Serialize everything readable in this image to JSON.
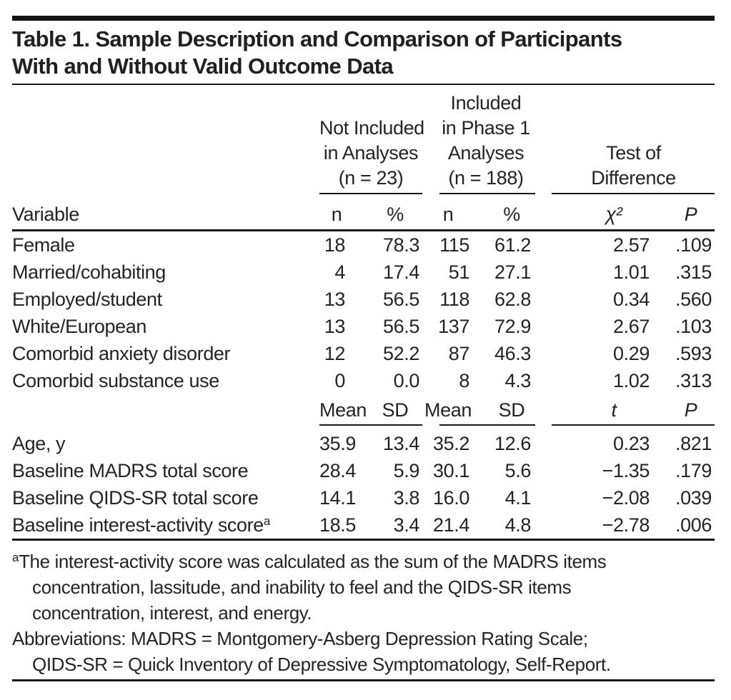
{
  "colors": {
    "background": "#ffffff",
    "text": "#262324",
    "rule": "#1b1818"
  },
  "title": {
    "line1": "Table 1. Sample Description and Comparison of Participants",
    "line2": "With and Without Valid Outcome Data"
  },
  "table": {
    "variable_header": "Variable",
    "groups": [
      {
        "label_lines": [
          "Not Included",
          "in Analyses",
          "(n = 23)"
        ]
      },
      {
        "label_lines": [
          "Included",
          "in Phase 1",
          "Analyses",
          "(n = 188)"
        ]
      },
      {
        "label_lines": [
          "Test of",
          "Difference"
        ]
      }
    ],
    "section1": {
      "col_headers": [
        {
          "text": "n",
          "italic": false
        },
        {
          "text": "%",
          "italic": false
        },
        {
          "text": "n",
          "italic": false
        },
        {
          "text": "%",
          "italic": false
        },
        {
          "text": "χ²",
          "italic": true
        },
        {
          "text": "P",
          "italic": true
        }
      ],
      "rows": [
        {
          "label": "Female",
          "values": [
            "18",
            "78.3",
            "115",
            "61.2",
            "2.57",
            ".109"
          ]
        },
        {
          "label": "Married/cohabiting",
          "values": [
            "4",
            "17.4",
            "51",
            "27.1",
            "1.01",
            ".315"
          ]
        },
        {
          "label": "Employed/student",
          "values": [
            "13",
            "56.5",
            "118",
            "62.8",
            "0.34",
            ".560"
          ]
        },
        {
          "label": "White/European",
          "values": [
            "13",
            "56.5",
            "137",
            "72.9",
            "2.67",
            ".103"
          ]
        },
        {
          "label": "Comorbid anxiety disorder",
          "values": [
            "12",
            "52.2",
            "87",
            "46.3",
            "0.29",
            ".593"
          ]
        },
        {
          "label": "Comorbid substance use",
          "values": [
            "0",
            "0.0",
            "8",
            "4.3",
            "1.02",
            ".313"
          ]
        }
      ]
    },
    "section2": {
      "col_headers": [
        {
          "text": "Mean",
          "italic": false
        },
        {
          "text": "SD",
          "italic": false
        },
        {
          "text": "Mean",
          "italic": false
        },
        {
          "text": "SD",
          "italic": false
        },
        {
          "text": "t",
          "italic": true
        },
        {
          "text": "P",
          "italic": true
        }
      ],
      "rows": [
        {
          "label": "Age, y",
          "values": [
            "35.9",
            "13.4",
            "35.2",
            "12.6",
            "0.23",
            ".821"
          ]
        },
        {
          "label": "Baseline MADRS total score",
          "values": [
            "28.4",
            "5.9",
            "30.1",
            "5.6",
            "−1.35",
            ".179"
          ]
        },
        {
          "label": "Baseline QIDS-SR total score",
          "values": [
            "14.1",
            "3.8",
            "16.0",
            "4.1",
            "−2.08",
            ".039"
          ]
        },
        {
          "label": "Baseline interest-activity score",
          "sup": "a",
          "values": [
            "18.5",
            "3.4",
            "21.4",
            "4.8",
            "−2.78",
            ".006"
          ]
        }
      ]
    }
  },
  "footnotes": {
    "lines": [
      {
        "sup": "a",
        "text": "The interest-activity score was calculated as the sum of the MADRS items",
        "indent": false
      },
      {
        "text": "concentration, lassitude, and inability to feel and the QIDS-SR items",
        "indent": true
      },
      {
        "text": "concentration, interest, and energy.",
        "indent": true
      },
      {
        "text": "Abbreviations: MADRS = Montgomery-Asberg Depression Rating Scale;",
        "indent": false
      },
      {
        "text": "QIDS-SR = Quick Inventory of Depressive Symptomatology, Self-Report.",
        "indent": true
      }
    ]
  }
}
